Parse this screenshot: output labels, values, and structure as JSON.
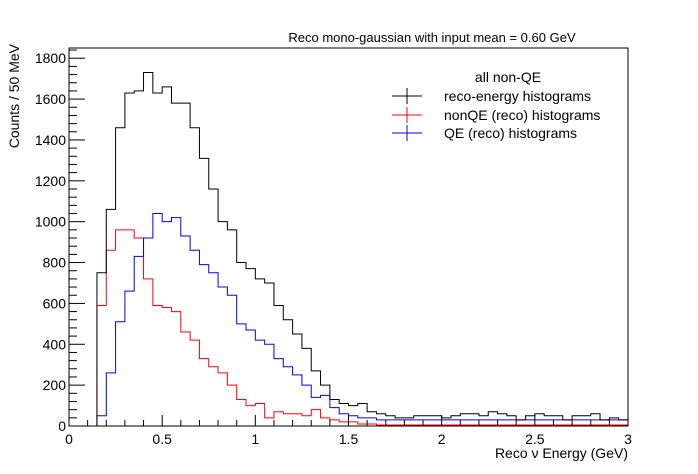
{
  "chart_data": {
    "type": "histogram",
    "title": "Reco mono-gaussian with input mean = 0.60 GeV",
    "xlabel": "Reco ν Energy (GeV)",
    "ylabel": "Counts / 50 MeV",
    "xlim": [
      0,
      3
    ],
    "ylim": [
      0,
      1850
    ],
    "bin_width": 0.05,
    "x_ticks": [
      0,
      0.5,
      1,
      1.5,
      2,
      2.5,
      3
    ],
    "x_tick_labels": [
      "0",
      "0.5",
      "1",
      "1.5",
      "2",
      "2.5",
      "3"
    ],
    "y_ticks": [
      0,
      200,
      400,
      600,
      800,
      1000,
      1200,
      1400,
      1600,
      1800
    ],
    "y_tick_labels": [
      "0",
      "200",
      "400",
      "600",
      "800",
      "1000",
      "1200",
      "1400",
      "1600",
      "1800"
    ],
    "legend": {
      "header": "all non-QE",
      "position": "top-right",
      "entries": [
        "reco-energy histograms",
        "nonQE (reco) histograms",
        "QE (reco) histograms"
      ]
    },
    "series": [
      {
        "name": "reco-energy histograms",
        "color": "#000000",
        "values": [
          0,
          0,
          0,
          750,
          1060,
          1460,
          1630,
          1640,
          1730,
          1630,
          1660,
          1580,
          1580,
          1460,
          1310,
          1160,
          1000,
          960,
          800,
          770,
          720,
          700,
          590,
          520,
          450,
          380,
          270,
          200,
          130,
          110,
          100,
          110,
          70,
          60,
          50,
          40,
          40,
          50,
          50,
          50,
          40,
          50,
          60,
          60,
          50,
          70,
          60,
          50,
          30,
          50,
          60,
          50,
          50,
          30,
          50,
          50,
          60,
          30,
          40,
          30
        ]
      },
      {
        "name": "nonQE (reco) histograms",
        "color": "#ff0000",
        "values": [
          0,
          0,
          0,
          590,
          860,
          960,
          960,
          920,
          720,
          590,
          580,
          560,
          460,
          420,
          330,
          290,
          260,
          200,
          130,
          100,
          110,
          40,
          70,
          60,
          60,
          50,
          80,
          40,
          30,
          20,
          20,
          10,
          10,
          5,
          5,
          5,
          5,
          5,
          5,
          5,
          5,
          5,
          5,
          5,
          5,
          5,
          5,
          5,
          5,
          5,
          5,
          5,
          5,
          5,
          5,
          5,
          5,
          5,
          5,
          5
        ]
      },
      {
        "name": "QE (reco) histograms",
        "color": "#0000ff",
        "values": [
          0,
          0,
          0,
          50,
          260,
          510,
          660,
          830,
          920,
          1040,
          1000,
          1020,
          930,
          860,
          790,
          750,
          680,
          640,
          500,
          470,
          420,
          400,
          330,
          290,
          250,
          200,
          140,
          150,
          90,
          60,
          50,
          40,
          40,
          30,
          30,
          30,
          30,
          30,
          30,
          30,
          30,
          30,
          30,
          30,
          30,
          30,
          30,
          30,
          30,
          30,
          30,
          30,
          30,
          30,
          30,
          30,
          30,
          30,
          30,
          30
        ]
      }
    ]
  }
}
